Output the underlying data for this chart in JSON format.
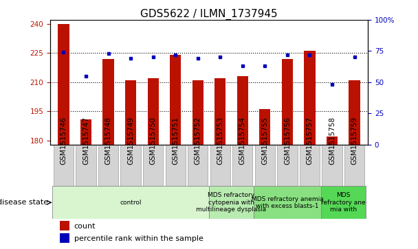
{
  "title": "GDS5622 / ILMN_1737945",
  "samples": [
    "GSM1515746",
    "GSM1515747",
    "GSM1515748",
    "GSM1515749",
    "GSM1515750",
    "GSM1515751",
    "GSM1515752",
    "GSM1515753",
    "GSM1515754",
    "GSM1515755",
    "GSM1515756",
    "GSM1515757",
    "GSM1515758",
    "GSM1515759"
  ],
  "counts": [
    240,
    191,
    222,
    211,
    212,
    224,
    211,
    212,
    213,
    196,
    222,
    226,
    182,
    211
  ],
  "percentile_ranks_pct": [
    74,
    55,
    73,
    69,
    70,
    72,
    69,
    70,
    63,
    63,
    72,
    72,
    48,
    70
  ],
  "ylim_left": [
    178,
    242
  ],
  "ylim_right": [
    0,
    100
  ],
  "yticks_left": [
    180,
    195,
    210,
    225,
    240
  ],
  "yticks_right": [
    0,
    25,
    50,
    75,
    100
  ],
  "bar_color": "#bb1100",
  "dot_color": "#0000bb",
  "bar_bottom": 178,
  "disease_groups": [
    {
      "label": "control",
      "start": 0,
      "end": 7,
      "color": "#d8f5d0"
    },
    {
      "label": "MDS refractory\ncytopenia with\nmultilineage dysplasia",
      "start": 7,
      "end": 9,
      "color": "#b8ebb0"
    },
    {
      "label": "MDS refractory anemia\nwith excess blasts-1",
      "start": 9,
      "end": 12,
      "color": "#88e080"
    },
    {
      "label": "MDS\nrefractory ane\nmia with",
      "start": 12,
      "end": 14,
      "color": "#55d855"
    }
  ],
  "disease_state_label": "disease state",
  "legend_count_label": "count",
  "legend_percentile_label": "percentile rank within the sample",
  "grid_yticks": [
    195,
    210,
    225
  ],
  "title_fontsize": 11,
  "tick_fontsize": 7.5,
  "label_fontsize": 8,
  "sample_box_color": "#d3d3d3",
  "sample_box_edge": "#aaaaaa"
}
